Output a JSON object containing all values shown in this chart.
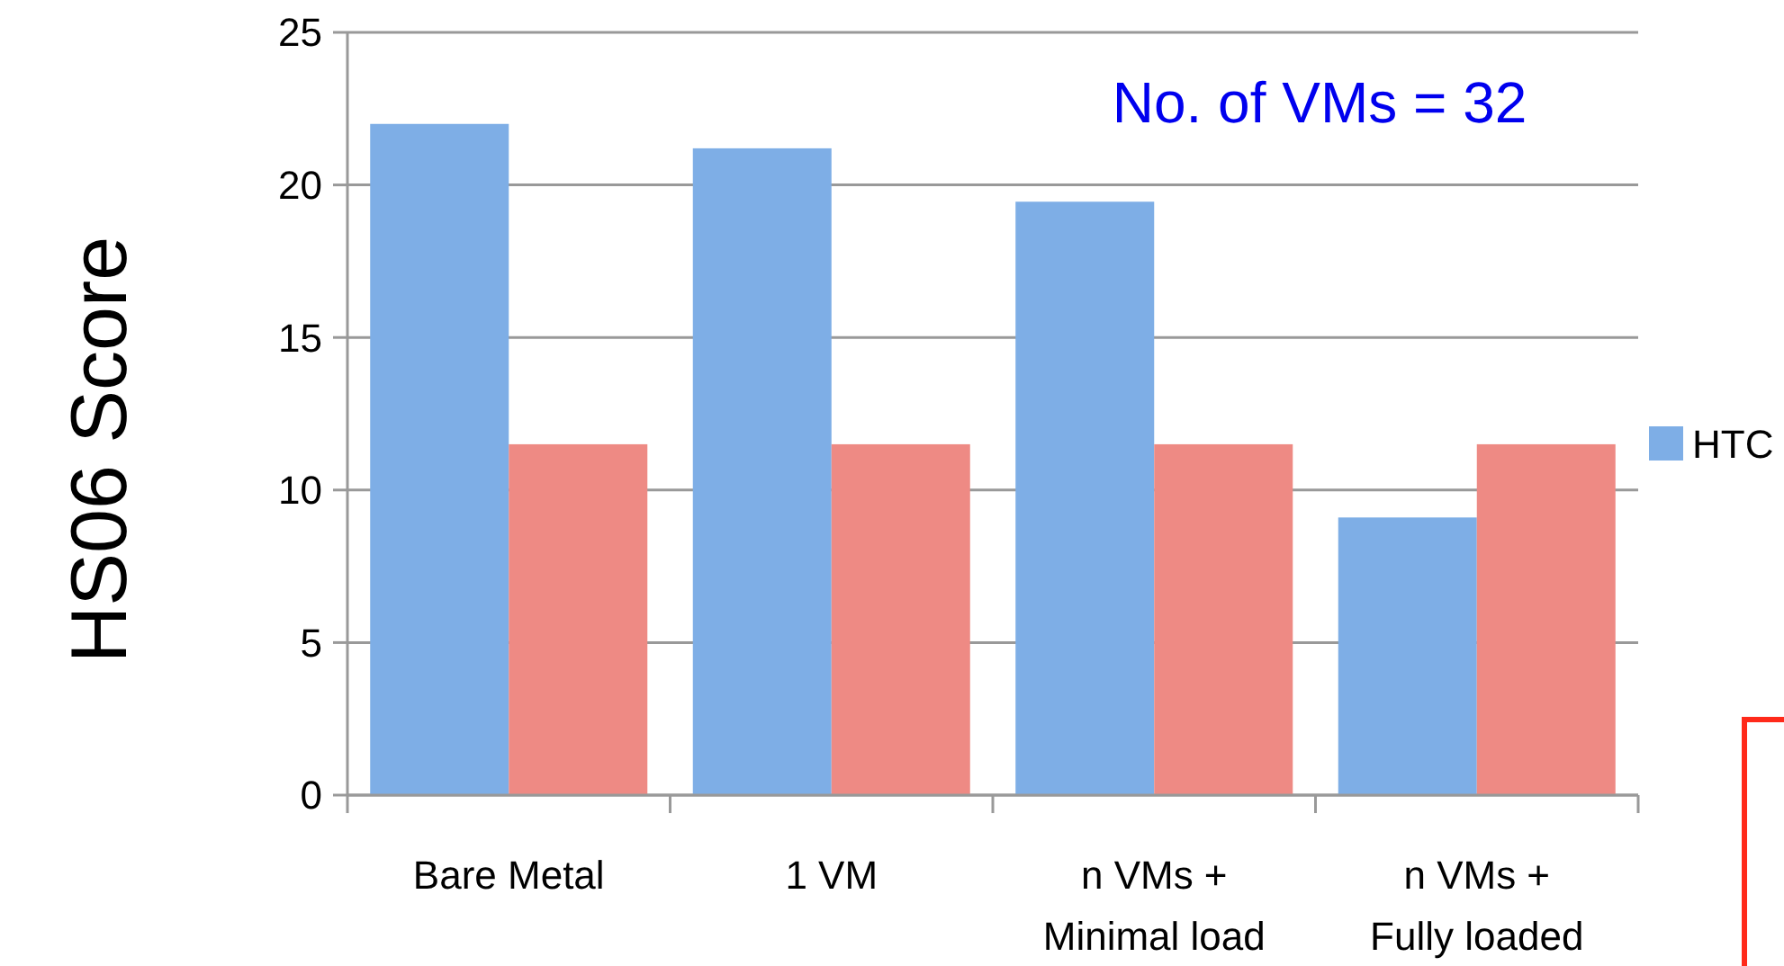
{
  "chart_data": {
    "type": "bar",
    "ylabel": "HS06 Score",
    "categories": [
      "Bare Metal",
      "1 VM",
      "n VMs + Minimal load",
      "n VMs + Fully loaded"
    ],
    "series": [
      {
        "name": "HTC",
        "color": "#7eaee6",
        "values": [
          22,
          21.2,
          19.45,
          9.1
        ]
      },
      {
        "color": "#ee8a84",
        "values": [
          11.5,
          11.5,
          11.5,
          11.5
        ]
      }
    ],
    "ylim": [
      0,
      25
    ],
    "yticks": [
      0,
      5,
      10,
      15,
      20,
      25
    ],
    "grid": "y",
    "legend": "right",
    "annotations": [
      "No. of VMs = 32"
    ]
  }
}
